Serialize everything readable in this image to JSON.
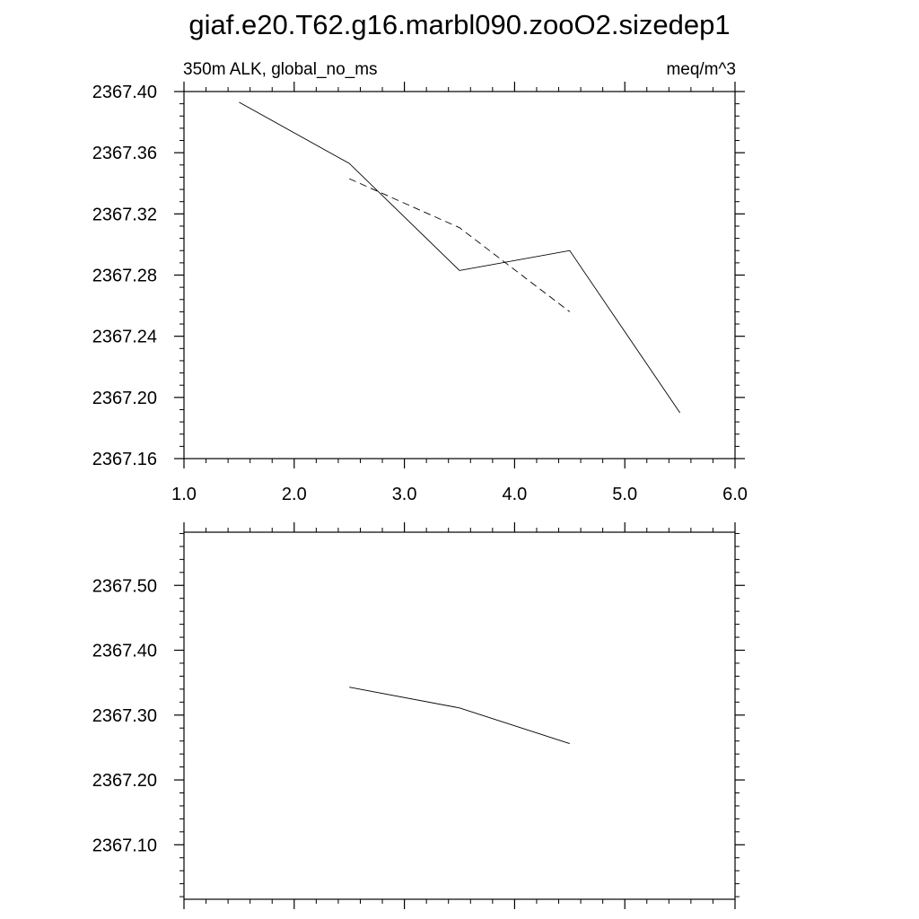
{
  "title": "giaf.e20.T62.g16.marbl090.zooO2.sizedep1",
  "chart_data": [
    {
      "type": "line",
      "subtitle_left": "350m ALK, global_no_ms",
      "subtitle_right": "meq/m^3",
      "xlim": [
        1.0,
        6.0
      ],
      "ylim": [
        2367.16,
        2367.4
      ],
      "x_ticks": [
        1.0,
        2.0,
        3.0,
        4.0,
        5.0,
        6.0
      ],
      "x_tick_labels": [
        "1.0",
        "2.0",
        "3.0",
        "4.0",
        "5.0",
        "6.0"
      ],
      "x_minor_step": 0.2,
      "y_ticks": [
        2367.16,
        2367.2,
        2367.24,
        2367.28,
        2367.32,
        2367.36,
        2367.4
      ],
      "y_tick_labels": [
        "2367.16",
        "2367.20",
        "2367.24",
        "2367.28",
        "2367.32",
        "2367.36",
        "2367.40"
      ],
      "y_minor_step": 0.008,
      "grid": false,
      "series": [
        {
          "dash": "solid",
          "x": [
            1.5,
            2.5,
            3.5,
            4.5,
            5.5
          ],
          "y": [
            2367.393,
            2367.353,
            2367.283,
            2367.296,
            2367.19
          ]
        },
        {
          "dash": "dashed",
          "x": [
            2.5,
            3.5,
            4.5
          ],
          "y": [
            2367.343,
            2367.311,
            2367.256
          ]
        }
      ]
    },
    {
      "type": "line",
      "xlim": [
        1.0,
        6.0
      ],
      "ylim": [
        2367.016,
        2367.582
      ],
      "x_ticks": [
        1.0,
        2.0,
        3.0,
        4.0,
        5.0,
        6.0
      ],
      "x_tick_labels": [],
      "x_minor_step": 0.2,
      "y_ticks": [
        2367.1,
        2367.2,
        2367.3,
        2367.4,
        2367.5
      ],
      "y_tick_labels": [
        "2367.10",
        "2367.20",
        "2367.30",
        "2367.40",
        "2367.50"
      ],
      "y_minor_step": 0.02,
      "grid": false,
      "series": [
        {
          "dash": "solid",
          "x": [
            2.5,
            3.5,
            4.5
          ],
          "y": [
            2367.343,
            2367.311,
            2367.256
          ]
        }
      ]
    }
  ]
}
